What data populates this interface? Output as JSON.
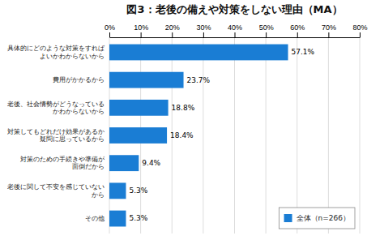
{
  "chart_data": {
    "type": "bar",
    "orientation": "horizontal",
    "title": "図3：老後の備えや対策をしない理由（MA）",
    "categories": [
      "具体的にどのような対策をすれば\nよいかわからないから",
      "費用がかかるから",
      "老後、社会情勢がどうなっている\nかわからないから",
      "対策してもどれだけ効果があるか\n疑問に思っているから",
      "対策のための手続きや準備が\n面倒だから",
      "老後に関して不安を感じていない\nから",
      "その他"
    ],
    "series": [
      {
        "name": "全体（n=266）",
        "color": "#1a7dd4",
        "values": [
          57.1,
          23.7,
          18.8,
          18.4,
          9.4,
          5.3,
          5.3
        ],
        "value_labels": [
          "57.1%",
          "23.7%",
          "18.8%",
          "18.4%",
          "9.4%",
          "5.3%",
          "5.3%"
        ]
      }
    ],
    "xlim": [
      0,
      80
    ],
    "xticks": [
      {
        "value": 0,
        "label": "0%"
      },
      {
        "value": 10,
        "label": "10%"
      },
      {
        "value": 20,
        "label": "20%"
      },
      {
        "value": 30,
        "label": "30%"
      },
      {
        "value": 40,
        "label": "40%"
      },
      {
        "value": 50,
        "label": "50%"
      },
      {
        "value": 60,
        "label": "60%"
      },
      {
        "value": 70,
        "label": "70%"
      },
      {
        "value": 80,
        "label": "80%"
      }
    ],
    "grid": true,
    "data_labels": true,
    "legend": "lower right"
  }
}
